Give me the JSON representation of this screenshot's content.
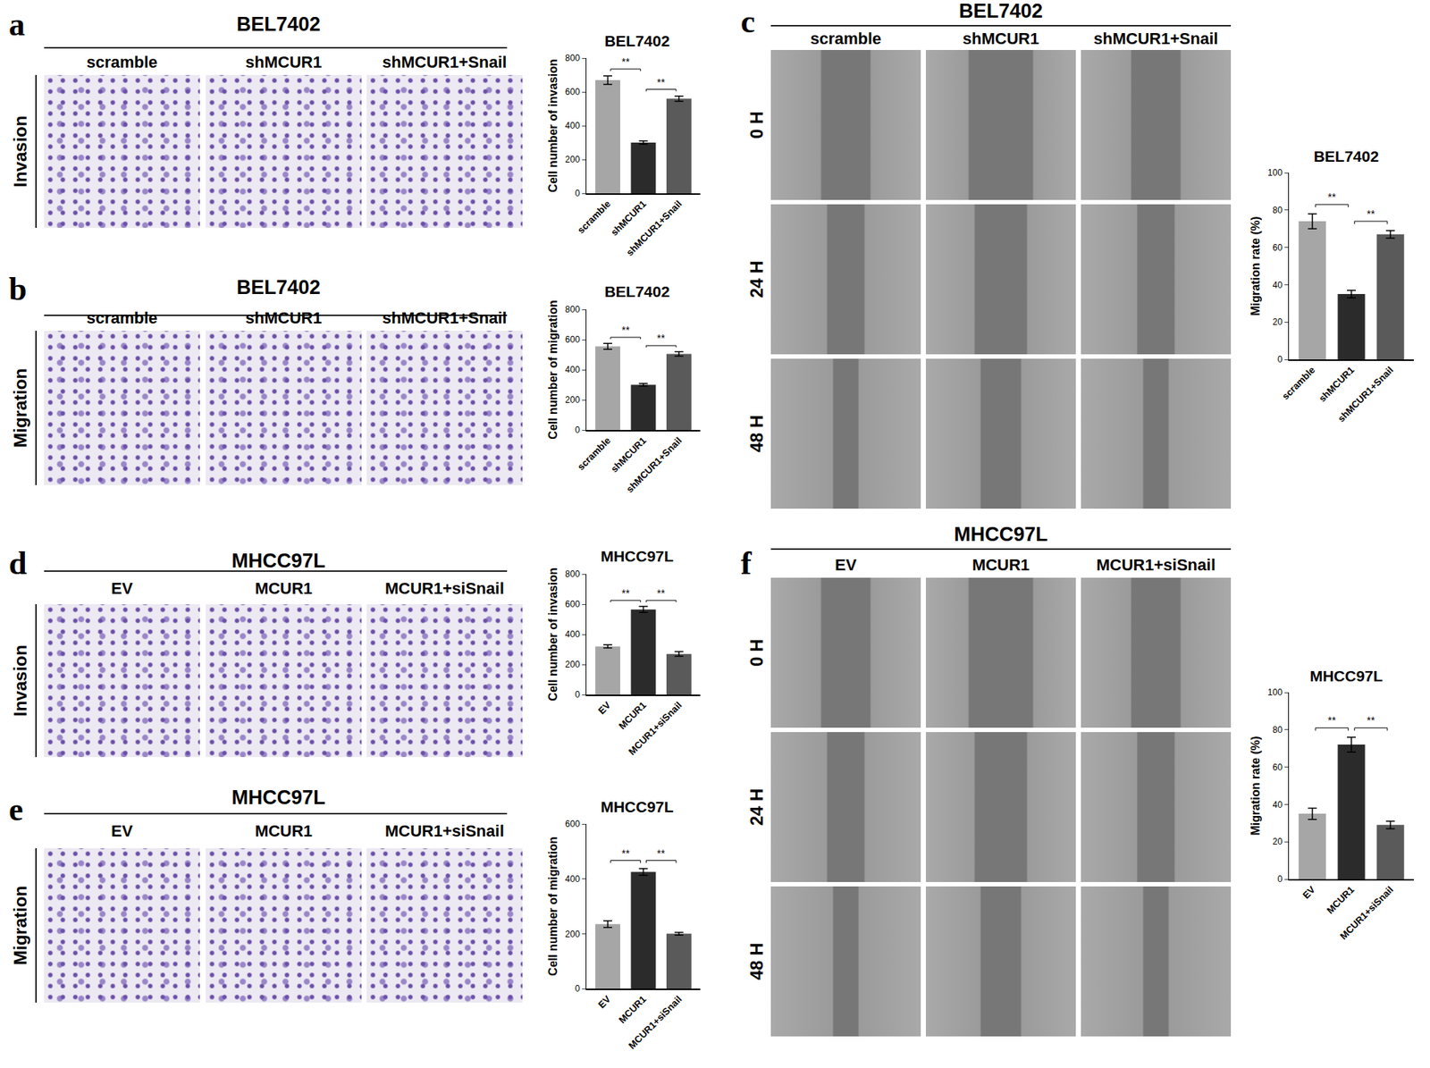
{
  "chart_data": [
    {
      "type": "bar",
      "title": "BEL7402",
      "categories": [
        "scramble",
        "shMCUR1",
        "shMCUR1+Snail"
      ],
      "values": [
        670,
        300,
        560
      ],
      "error": [
        25,
        10,
        15
      ],
      "colors": [
        "#a6a6a6",
        "#2b2b2b",
        "#5a5a5a"
      ],
      "y_label": "Cell number of invasion",
      "ylim": [
        0,
        800
      ],
      "yticks": [
        0,
        200,
        400,
        600,
        800
      ],
      "annotations": [
        {
          "text": "**",
          "pair": [
            "scramble",
            "shMCUR1"
          ]
        },
        {
          "text": "**",
          "pair": [
            "shMCUR1",
            "shMCUR1+Snail"
          ]
        }
      ]
    },
    {
      "type": "bar",
      "title": "BEL7402",
      "categories": [
        "scramble",
        "shMCUR1",
        "shMCUR1+Snail"
      ],
      "values": [
        555,
        300,
        505
      ],
      "error": [
        20,
        8,
        15
      ],
      "colors": [
        "#a6a6a6",
        "#2b2b2b",
        "#5a5a5a"
      ],
      "y_label": "Cell number of migration",
      "ylim": [
        0,
        800
      ],
      "yticks": [
        0,
        200,
        400,
        600,
        800
      ],
      "annotations": [
        {
          "text": "**",
          "pair": [
            "scramble",
            "shMCUR1"
          ]
        },
        {
          "text": "**",
          "pair": [
            "shMCUR1",
            "shMCUR1+Snail"
          ]
        }
      ]
    },
    {
      "type": "bar",
      "title": "BEL7402",
      "categories": [
        "scramble",
        "shMCUR1",
        "shMCUR1+Snail"
      ],
      "values": [
        74,
        35,
        67
      ],
      "error": [
        4,
        2,
        2
      ],
      "colors": [
        "#a6a6a6",
        "#2b2b2b",
        "#5a5a5a"
      ],
      "y_label": "Migration rate (%)",
      "ylim": [
        0,
        100
      ],
      "yticks": [
        0,
        20,
        40,
        60,
        80,
        100
      ],
      "annotations": [
        {
          "text": "**",
          "pair": [
            "scramble",
            "shMCUR1"
          ]
        },
        {
          "text": "**",
          "pair": [
            "shMCUR1",
            "shMCUR1+Snail"
          ]
        }
      ]
    },
    {
      "type": "bar",
      "title": "MHCC97L",
      "categories": [
        "EV",
        "MCUR1",
        "MCUR1+siSnail"
      ],
      "values": [
        320,
        565,
        270
      ],
      "error": [
        10,
        20,
        15
      ],
      "colors": [
        "#a6a6a6",
        "#2b2b2b",
        "#5a5a5a"
      ],
      "y_label": "Cell number of invasion",
      "ylim": [
        0,
        800
      ],
      "yticks": [
        0,
        200,
        400,
        600,
        800
      ],
      "annotations": [
        {
          "text": "**",
          "pair": [
            "EV",
            "MCUR1"
          ]
        },
        {
          "text": "**",
          "pair": [
            "MCUR1",
            "MCUR1+siSnail"
          ]
        }
      ]
    },
    {
      "type": "bar",
      "title": "MHCC97L",
      "categories": [
        "EV",
        "MCUR1",
        "MCUR1+siSnail"
      ],
      "values": [
        235,
        425,
        200
      ],
      "error": [
        12,
        12,
        5
      ],
      "colors": [
        "#a6a6a6",
        "#2b2b2b",
        "#5a5a5a"
      ],
      "y_label": "Cell number of migration",
      "ylim": [
        0,
        600
      ],
      "yticks": [
        0,
        200,
        400,
        600
      ],
      "annotations": [
        {
          "text": "**",
          "pair": [
            "EV",
            "MCUR1"
          ]
        },
        {
          "text": "**",
          "pair": [
            "MCUR1",
            "MCUR1+siSnail"
          ]
        }
      ]
    },
    {
      "type": "bar",
      "title": "MHCC97L",
      "categories": [
        "EV",
        "MCUR1",
        "MCUR1+siSnail"
      ],
      "values": [
        35,
        72,
        29
      ],
      "error": [
        3,
        4,
        2
      ],
      "colors": [
        "#a6a6a6",
        "#2b2b2b",
        "#5a5a5a"
      ],
      "y_label": "Migration rate (%)",
      "ylim": [
        0,
        100
      ],
      "yticks": [
        0,
        20,
        40,
        60,
        80,
        100
      ],
      "annotations": [
        {
          "text": "**",
          "pair": [
            "EV",
            "MCUR1"
          ]
        },
        {
          "text": "**",
          "pair": [
            "MCUR1",
            "MCUR1+siSnail"
          ]
        }
      ]
    }
  ],
  "panels": [
    {
      "label": "a",
      "title": "BEL7402",
      "columns": [
        "scramble",
        "shMCUR1",
        "shMCUR1+Snail"
      ],
      "rows": [
        "Invasion"
      ]
    },
    {
      "label": "b",
      "title": "BEL7402",
      "columns": [
        "scramble",
        "shMCUR1",
        "shMCUR1+Snail"
      ],
      "rows": [
        "Migration"
      ]
    },
    {
      "label": "c",
      "title": "BEL7402",
      "columns": [
        "scramble",
        "shMCUR1",
        "shMCUR1+Snail"
      ],
      "rows": [
        "0 H",
        "24 H",
        "48 H"
      ]
    },
    {
      "label": "d",
      "title": "MHCC97L",
      "columns": [
        "EV",
        "MCUR1",
        "MCUR1+siSnail"
      ],
      "rows": [
        "Invasion"
      ]
    },
    {
      "label": "e",
      "title": "MHCC97L",
      "columns": [
        "EV",
        "MCUR1",
        "MCUR1+siSnail"
      ],
      "rows": [
        "Migration"
      ]
    },
    {
      "label": "f",
      "title": "MHCC97L",
      "columns": [
        "EV",
        "MCUR1",
        "MCUR1+siSnail"
      ],
      "rows": [
        "0 H",
        "24 H",
        "48 H"
      ]
    }
  ]
}
